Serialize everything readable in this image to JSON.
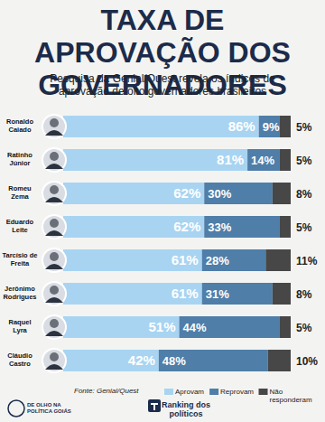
{
  "chart_data": {
    "type": "bar",
    "orientation": "horizontal",
    "stacked": true,
    "data_labels": true,
    "tick_labels": false,
    "grid": false,
    "title": "TAXA DE APROVAÇÃO DOS GOVERNADORES",
    "subtitle": "Pesquisa da Genial/Quest revela os índices de aprovação de oito governadores brasileiros",
    "source": "Fonte: Genial/Quest",
    "annotations": [
      "Ranking dos políticos",
      "DE OLHO NA POLÍTICA GOIÁS"
    ],
    "legend": "bottom",
    "categories": [
      "Ronaldo Caiado",
      "Ratinho Júnior",
      "Romeu Zema",
      "Eduardo Leite",
      "Tarcísio de Freita",
      "Jerônimo Rodrigues",
      "Raquel Lyra",
      "Cláudio Castro"
    ],
    "xlim": [
      0,
      100
    ],
    "xticks": [],
    "series": [
      {
        "name": "Aprovam",
        "color": "#a8d4f2",
        "values": [
          86,
          81,
          62,
          62,
          61,
          61,
          51,
          42
        ],
        "value_labels": [
          "86%",
          "81%",
          "62%",
          "62%",
          "61%",
          "61%",
          "51%",
          "42%"
        ]
      },
      {
        "name": "Reprovam",
        "color": "#4f7ea8",
        "values": [
          9,
          14,
          30,
          33,
          28,
          31,
          44,
          48
        ],
        "value_labels": [
          "9%",
          "14%",
          "30%",
          "33%",
          "28%",
          "31%",
          "44%",
          "48%"
        ]
      },
      {
        "name": "Não responderam",
        "color": "#474747",
        "values": [
          5,
          5,
          8,
          5,
          11,
          8,
          5,
          10
        ],
        "value_labels": [
          "5%",
          "5%",
          "8%",
          "5%",
          "11%",
          "8%",
          "5%",
          "10%"
        ]
      }
    ]
  }
}
